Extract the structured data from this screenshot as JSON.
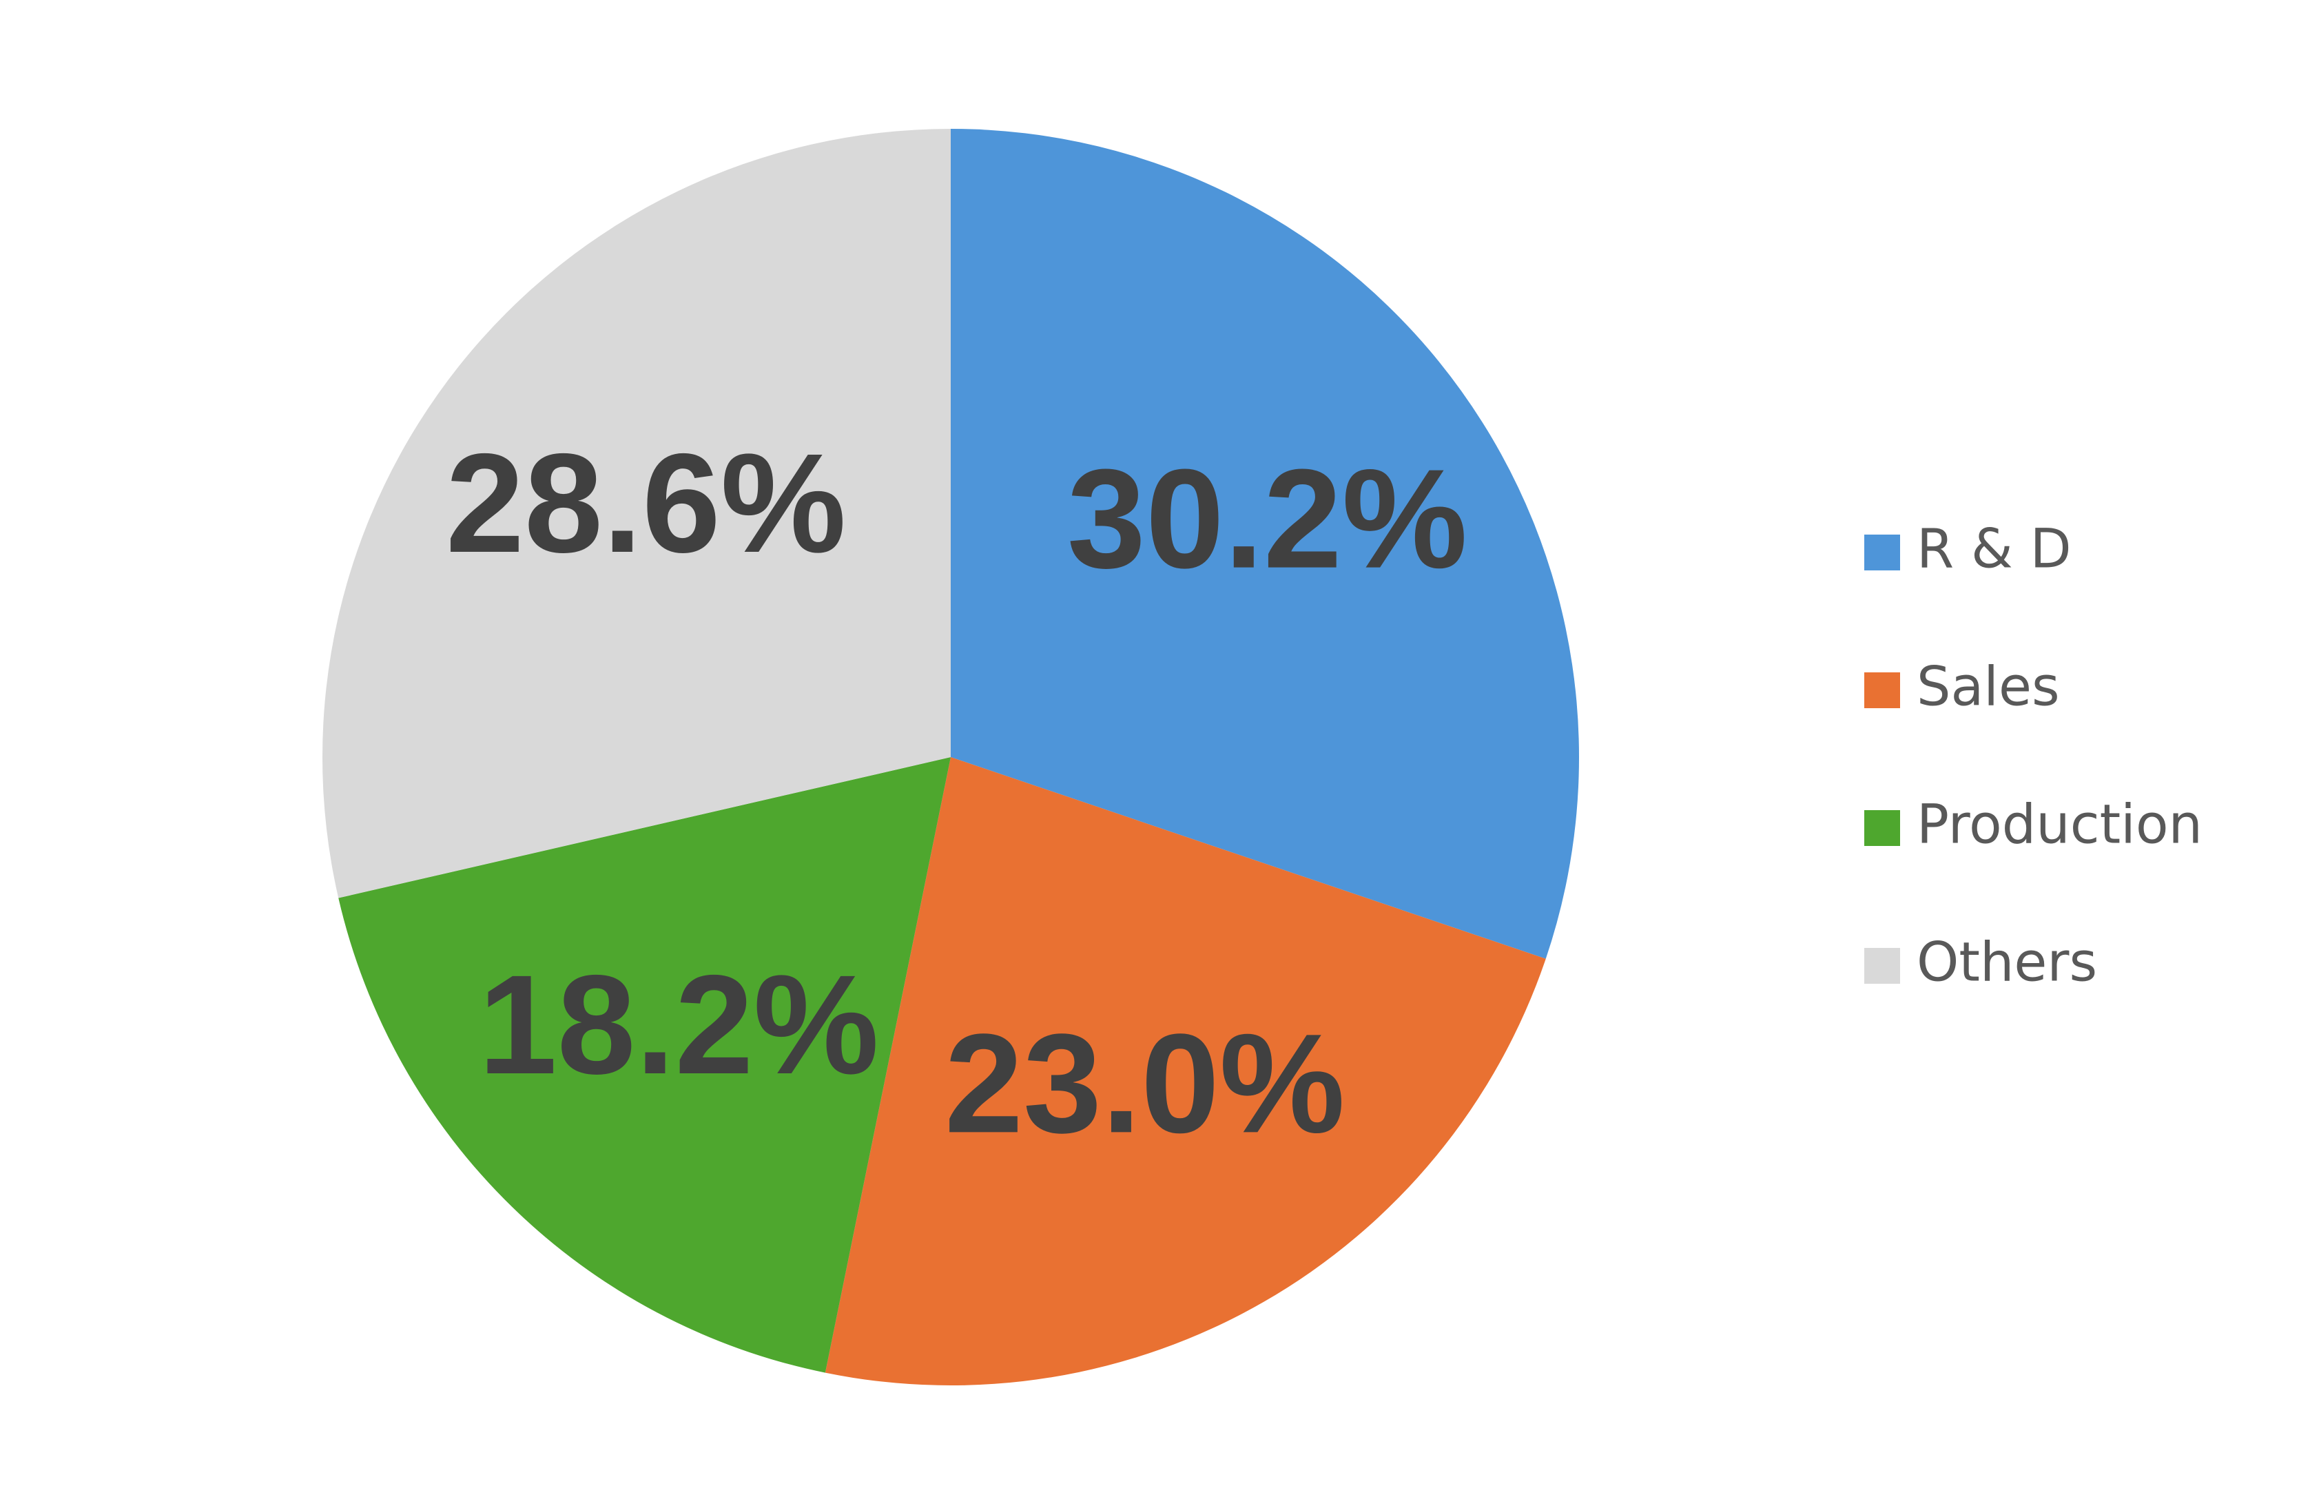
{
  "chart_data": {
    "type": "pie",
    "categories": [
      "R & D",
      "Sales",
      "Production",
      "Others"
    ],
    "values": [
      30.2,
      23.0,
      18.2,
      28.6
    ],
    "value_labels": [
      "30.2%",
      "23.0%",
      "18.2%",
      "28.6%"
    ],
    "colors": [
      "#4e95d9",
      "#e97132",
      "#4ea72e",
      "#d9d9d9"
    ],
    "legend": "right"
  }
}
